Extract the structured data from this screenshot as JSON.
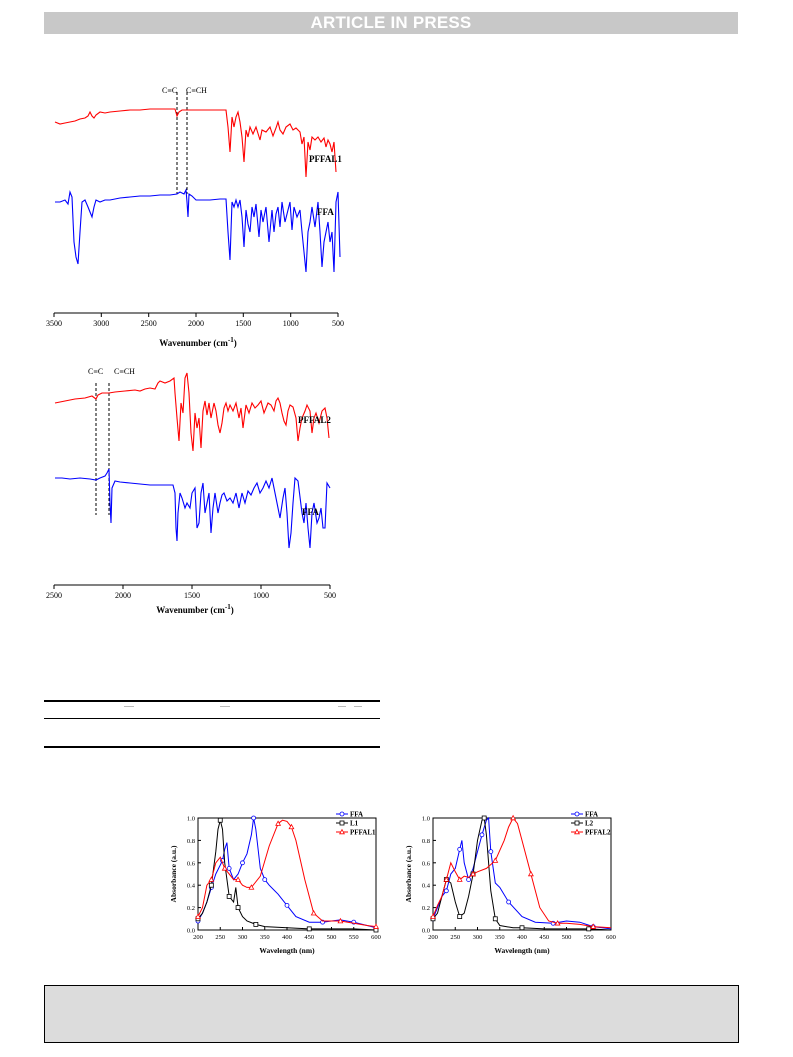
{
  "header": {
    "banner": "ARTICLE IN PRESS"
  },
  "colors": {
    "red": "#ff0000",
    "blue": "#0000ff",
    "black": "#000000",
    "banner_bg": "#c8c8c8"
  },
  "ir_chart_1": {
    "type": "line",
    "xlabel": "Wavenumber (cm",
    "xlabel_sup": "-1",
    "xlabel_end": ")",
    "xlim": [
      3500,
      500
    ],
    "ticks": [
      3500,
      3000,
      2500,
      2000,
      1500,
      1000,
      500
    ],
    "markers": [
      {
        "label": "C≡C",
        "x": 2185
      },
      {
        "label": "C≡CH",
        "x": 2110
      }
    ],
    "series": [
      {
        "name": "PFFAL1",
        "color": "#ff0000"
      },
      {
        "name": "FFA",
        "color": "#0000ff"
      }
    ]
  },
  "ir_chart_2": {
    "type": "line",
    "xlabel": "Wavenumber (cm",
    "xlabel_sup": "-1",
    "xlabel_end": ")",
    "xlim": [
      2500,
      500
    ],
    "ticks": [
      2500,
      2000,
      1500,
      1000,
      500
    ],
    "markers": [
      {
        "label": "C≡C",
        "x": 2190
      },
      {
        "label": "C≡CH",
        "x": 2110
      }
    ],
    "series": [
      {
        "name": "PFFAL2",
        "color": "#ff0000"
      },
      {
        "name": "FFA",
        "color": "#0000ff"
      }
    ]
  },
  "chart_data": [
    {
      "type": "line",
      "xlabel": "Wavelength (nm)",
      "ylabel": "Absorbance (a.u.)",
      "xlim": [
        200,
        600
      ],
      "ylim": [
        0.0,
        1.0
      ],
      "xticks": [
        200,
        250,
        300,
        350,
        400,
        450,
        500,
        550,
        600
      ],
      "yticks": [
        "0.0",
        "0.2",
        "0.4",
        "0.6",
        "0.8",
        "1.0"
      ],
      "legend_position": "top-right",
      "series": [
        {
          "name": "FFA",
          "color": "#0000ff",
          "marker": "circle",
          "x": [
            200,
            210,
            220,
            230,
            240,
            250,
            255,
            260,
            265,
            270,
            280,
            290,
            300,
            310,
            320,
            325,
            330,
            340,
            350,
            360,
            380,
            400,
            420,
            450,
            480,
            500,
            520,
            550,
            580,
            600
          ],
          "y": [
            0.08,
            0.15,
            0.25,
            0.38,
            0.5,
            0.58,
            0.62,
            0.72,
            0.78,
            0.55,
            0.45,
            0.5,
            0.6,
            0.68,
            0.85,
            1.0,
            0.9,
            0.55,
            0.45,
            0.4,
            0.32,
            0.22,
            0.12,
            0.07,
            0.07,
            0.08,
            0.09,
            0.07,
            0.04,
            0.02
          ]
        },
        {
          "name": "L1",
          "color": "#000000",
          "marker": "square",
          "x": [
            200,
            210,
            220,
            230,
            240,
            245,
            250,
            255,
            260,
            270,
            280,
            285,
            290,
            300,
            310,
            330,
            350,
            400,
            450,
            500,
            550,
            600
          ],
          "y": [
            0.1,
            0.15,
            0.25,
            0.4,
            0.7,
            0.9,
            0.98,
            0.9,
            0.6,
            0.3,
            0.25,
            0.38,
            0.2,
            0.12,
            0.08,
            0.05,
            0.03,
            0.02,
            0.01,
            0.01,
            0.01,
            0.0
          ]
        },
        {
          "name": "PFFAL1",
          "color": "#ff0000",
          "marker": "triangle",
          "x": [
            200,
            210,
            220,
            230,
            240,
            250,
            260,
            270,
            280,
            290,
            300,
            310,
            320,
            340,
            360,
            380,
            390,
            400,
            410,
            420,
            440,
            460,
            480,
            500,
            520,
            550,
            580,
            600
          ],
          "y": [
            0.12,
            0.2,
            0.4,
            0.45,
            0.6,
            0.65,
            0.55,
            0.5,
            0.45,
            0.45,
            0.4,
            0.38,
            0.38,
            0.48,
            0.75,
            0.95,
            0.98,
            0.97,
            0.92,
            0.8,
            0.45,
            0.15,
            0.08,
            0.08,
            0.08,
            0.06,
            0.04,
            0.03
          ]
        }
      ]
    },
    {
      "type": "line",
      "xlabel": "Wavelength (nm)",
      "ylabel": "Absorbance (a.u.)",
      "xlim": [
        200,
        600
      ],
      "ylim": [
        0.0,
        1.0
      ],
      "xticks": [
        200,
        250,
        300,
        350,
        400,
        450,
        500,
        550,
        600
      ],
      "yticks": [
        "0.0",
        "0.2",
        "0.4",
        "0.6",
        "0.8",
        "1.0"
      ],
      "legend_position": "top-right",
      "series": [
        {
          "name": "FFA",
          "color": "#0000ff",
          "marker": "circle",
          "x": [
            200,
            210,
            220,
            230,
            240,
            250,
            260,
            265,
            270,
            280,
            290,
            300,
            310,
            320,
            325,
            330,
            340,
            350,
            370,
            400,
            430,
            470,
            500,
            530,
            560,
            600
          ],
          "y": [
            0.1,
            0.2,
            0.3,
            0.35,
            0.5,
            0.55,
            0.72,
            0.8,
            0.6,
            0.45,
            0.55,
            0.7,
            0.85,
            0.98,
            1.0,
            0.7,
            0.42,
            0.38,
            0.25,
            0.12,
            0.07,
            0.06,
            0.08,
            0.07,
            0.03,
            0.01
          ]
        },
        {
          "name": "L2",
          "color": "#000000",
          "marker": "square",
          "x": [
            200,
            210,
            220,
            230,
            240,
            250,
            260,
            270,
            280,
            290,
            300,
            310,
            315,
            320,
            330,
            340,
            350,
            380,
            400,
            450,
            500,
            550,
            600
          ],
          "y": [
            0.1,
            0.15,
            0.3,
            0.45,
            0.42,
            0.25,
            0.12,
            0.15,
            0.3,
            0.5,
            0.8,
            0.98,
            1.0,
            0.85,
            0.35,
            0.1,
            0.04,
            0.02,
            0.02,
            0.01,
            0.01,
            0.01,
            0.0
          ]
        },
        {
          "name": "PFFAL2",
          "color": "#ff0000",
          "marker": "triangle",
          "x": [
            200,
            210,
            220,
            230,
            240,
            250,
            260,
            270,
            280,
            290,
            300,
            320,
            340,
            360,
            370,
            380,
            390,
            400,
            420,
            440,
            460,
            480,
            500,
            530,
            560,
            600
          ],
          "y": [
            0.12,
            0.22,
            0.3,
            0.45,
            0.6,
            0.52,
            0.45,
            0.48,
            0.47,
            0.5,
            0.52,
            0.55,
            0.62,
            0.8,
            0.92,
            1.0,
            0.95,
            0.8,
            0.5,
            0.2,
            0.08,
            0.06,
            0.06,
            0.05,
            0.03,
            0.02
          ]
        }
      ]
    }
  ]
}
